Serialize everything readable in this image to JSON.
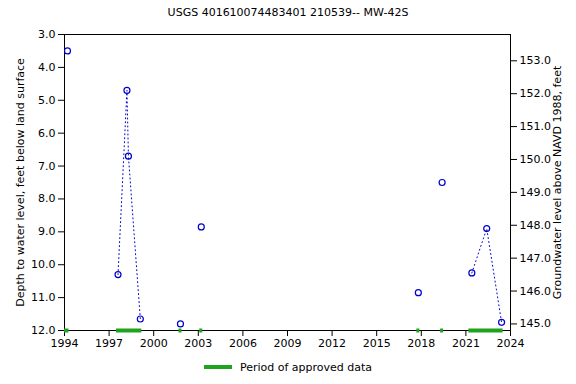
{
  "chart_data": {
    "type": "scatter",
    "title": "USGS 401610074483401 210539-- MW-42S",
    "y_label": "Depth to water level, feet below land surface",
    "y2_label": "Groundwater level above NAVD 1988, feet",
    "x": [
      1994.2,
      1994.2,
      1997.6,
      1998.2,
      1998.3,
      1999.1,
      1999.1,
      2001.8,
      2001.8,
      2003.2,
      2003.2,
      2017.8,
      2017.8,
      2019.4,
      2019.4,
      2021.4,
      2022.4,
      2023.4
    ],
    "values": [
      3.5,
      null,
      10.3,
      4.7,
      6.7,
      11.65,
      null,
      11.8,
      null,
      8.85,
      null,
      10.85,
      null,
      7.5,
      null,
      10.25,
      8.9,
      11.75
    ],
    "color": "#0000cc",
    "marker": "circle",
    "line_style": "dotted",
    "xlim": [
      1994,
      2024
    ],
    "xticks": [
      1994,
      1997,
      2000,
      2003,
      2006,
      2009,
      2012,
      2015,
      2018,
      2021,
      2024
    ],
    "ylim": [
      3,
      12
    ],
    "yticks": [
      {
        "value": 3,
        "label": "3.0"
      },
      {
        "value": 4,
        "label": "4.0"
      },
      {
        "value": 5,
        "label": "5.0"
      },
      {
        "value": 6,
        "label": "6.0"
      },
      {
        "value": 7,
        "label": "7.0"
      },
      {
        "value": 8,
        "label": "8.0"
      },
      {
        "value": 9,
        "label": "9.0"
      },
      {
        "value": 10,
        "label": "10.0"
      },
      {
        "value": 11,
        "label": "11.0"
      },
      {
        "value": 12,
        "label": "12.0"
      }
    ],
    "y2lim": [
      153.8,
      144.8
    ],
    "y2ticks": [
      {
        "value": 145,
        "label": "145.0"
      },
      {
        "value": 146,
        "label": "146.0"
      },
      {
        "value": 147,
        "label": "147.0"
      },
      {
        "value": 148,
        "label": "148.0"
      },
      {
        "value": 149,
        "label": "149.0"
      },
      {
        "value": 150,
        "label": "150.0"
      },
      {
        "value": 151,
        "label": "151.0"
      },
      {
        "value": 152,
        "label": "152.0"
      },
      {
        "value": 153,
        "label": "153.0"
      }
    ],
    "grid": false,
    "legend": "bottom",
    "approved_label": "Period of approved data",
    "approved_color": "#1fa31f",
    "approved_periods": [
      [
        1994.0,
        1994.3
      ],
      [
        1997.5,
        1999.2
      ],
      [
        2001.7,
        2001.9
      ],
      [
        2003.1,
        2003.3
      ],
      [
        2017.7,
        2017.9
      ],
      [
        2019.3,
        2019.5
      ],
      [
        2021.2,
        2023.5
      ]
    ]
  }
}
